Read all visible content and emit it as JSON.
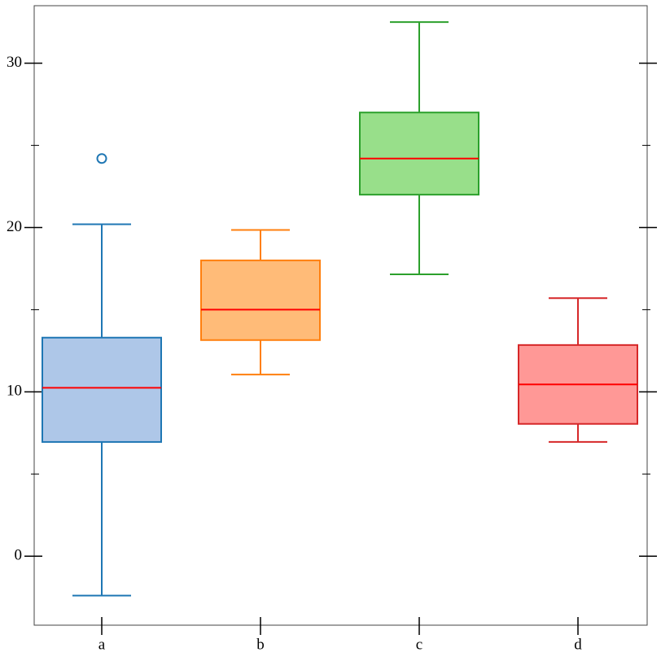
{
  "chart_data": {
    "type": "box",
    "categories": [
      "a",
      "b",
      "c",
      "d"
    ],
    "boxes": [
      {
        "low": -2.4,
        "q1": 6.95,
        "median": 10.25,
        "q3": 13.3,
        "high": 20.2,
        "outliers": [
          24.2
        ]
      },
      {
        "low": 11.05,
        "q1": 13.15,
        "median": 15.0,
        "q3": 18.0,
        "high": 19.85,
        "outliers": []
      },
      {
        "low": 17.15,
        "q1": 22.0,
        "median": 24.2,
        "q3": 27.0,
        "high": 32.5,
        "outliers": []
      },
      {
        "low": 6.95,
        "q1": 8.05,
        "median": 10.45,
        "q3": 12.85,
        "high": 15.7,
        "outliers": []
      }
    ],
    "colors": [
      "#1f77b4",
      "#ff7f0e",
      "#2ca02c",
      "#d62728"
    ],
    "fill_colors": [
      "#aec7e8",
      "#ffbb78",
      "#98df8a",
      "#ff9896"
    ],
    "median_color": "#ff0000",
    "ylim": [
      -4.2,
      33.5
    ],
    "yticks": [
      0,
      10,
      20,
      30
    ],
    "minor_yticks": [
      5,
      15,
      25
    ]
  }
}
